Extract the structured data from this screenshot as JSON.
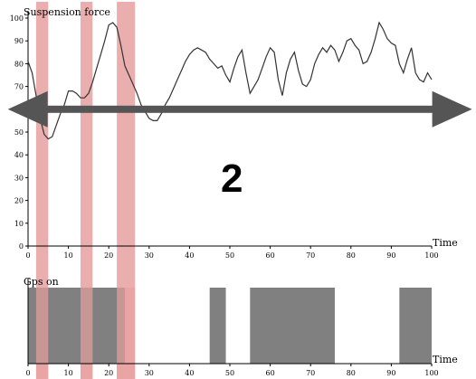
{
  "chart_data": [
    {
      "type": "line",
      "ylabel": "Suspension force",
      "xlabel": "Time",
      "xlim": [
        0,
        100
      ],
      "ylim": [
        0,
        100
      ],
      "x_ticks": [
        0,
        10,
        20,
        30,
        40,
        50,
        60,
        70,
        80,
        90,
        100
      ],
      "y_ticks": [
        0,
        10,
        20,
        30,
        40,
        50,
        60,
        70,
        80,
        90,
        100
      ],
      "series": [
        {
          "color": "#333333",
          "x": [
            0,
            1,
            2,
            3,
            4,
            5,
            6,
            7,
            8,
            9,
            10,
            11,
            12,
            13,
            14,
            15,
            16,
            17,
            18,
            19,
            20,
            21,
            22,
            23,
            24,
            25,
            26,
            27,
            28,
            29,
            30,
            31,
            32,
            33,
            34,
            35,
            36,
            37,
            38,
            39,
            40,
            41,
            42,
            43,
            44,
            45,
            46,
            47,
            48,
            49,
            50,
            51,
            52,
            53,
            54,
            55,
            56,
            57,
            58,
            59,
            60,
            61,
            62,
            63,
            64,
            65,
            66,
            67,
            68,
            69,
            70,
            71,
            72,
            73,
            74,
            75,
            76,
            77,
            78,
            79,
            80,
            81,
            82,
            83,
            84,
            85,
            86,
            87,
            88,
            89,
            90,
            91,
            92,
            93,
            94,
            95,
            96,
            97,
            98,
            99,
            100
          ],
          "y": [
            81,
            76,
            66,
            56,
            49,
            47,
            48,
            53,
            58,
            62,
            68,
            68,
            67,
            65,
            65,
            67,
            72,
            78,
            84,
            90,
            97,
            98,
            96,
            88,
            79,
            75,
            71,
            67,
            62,
            59,
            56,
            55,
            55,
            58,
            62,
            65,
            69,
            73,
            77,
            81,
            84,
            86,
            87,
            86,
            85,
            82,
            80,
            78,
            79,
            75,
            72,
            78,
            83,
            86,
            76,
            67,
            70,
            73,
            78,
            83,
            87,
            85,
            73,
            66,
            76,
            82,
            85,
            77,
            71,
            70,
            73,
            80,
            84,
            87,
            85,
            88,
            86,
            81,
            85,
            90,
            91,
            88,
            86,
            80,
            81,
            85,
            91,
            98,
            95,
            91,
            89,
            88,
            80,
            76,
            82,
            87,
            76,
            73,
            72,
            76,
            73
          ]
        }
      ],
      "highlights": [
        {
          "x_start": 2,
          "x_end": 5,
          "color": "#e8a0a0"
        },
        {
          "x_start": 13,
          "x_end": 16,
          "color": "#e8a0a0"
        },
        {
          "x_start": 22,
          "x_end": 26.5,
          "color": "#e8a0a0"
        }
      ],
      "annotation_arrow": {
        "x_start": -5,
        "x_end": 110,
        "y": 60,
        "direction": "double",
        "color": "#555555"
      },
      "annotation_text": "2"
    },
    {
      "type": "bar",
      "ylabel": "Gps on",
      "xlabel": "Time",
      "xlim": [
        0,
        100
      ],
      "x_ticks": [
        0,
        10,
        20,
        30,
        40,
        50,
        60,
        70,
        80,
        90,
        100
      ],
      "color": "#808080",
      "intervals": [
        {
          "start": 0,
          "end": 24
        },
        {
          "start": 45,
          "end": 49
        },
        {
          "start": 55,
          "end": 76
        },
        {
          "start": 92,
          "end": 100
        }
      ],
      "highlights": [
        {
          "x_start": 2,
          "x_end": 5,
          "color": "#e8a0a0"
        },
        {
          "x_start": 13,
          "x_end": 16,
          "color": "#e8a0a0"
        },
        {
          "x_start": 22,
          "x_end": 26.5,
          "color": "#e8a0a0"
        }
      ]
    }
  ]
}
